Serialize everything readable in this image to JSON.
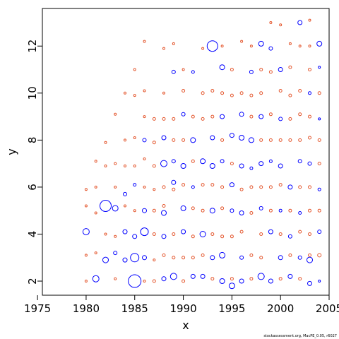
{
  "chart_data": {
    "type": "scatter",
    "title": "",
    "xlabel": "x",
    "ylabel": "y",
    "xlim": [
      1975.5,
      2005
    ],
    "ylim": [
      1.4,
      13.6
    ],
    "x_ticks": [
      1975,
      1980,
      1985,
      1990,
      1995,
      2000,
      2005
    ],
    "y_ticks": [
      2,
      4,
      6,
      8,
      10,
      12
    ],
    "grid": false,
    "legend": "none",
    "marker": "circle, size proportional to magnitude",
    "colors": {
      "positive": "#0000ff",
      "negative": "#e4572e",
      "frame": "#000000"
    },
    "footnote": "stockassessment.org, MacPE_0.05, r6027",
    "series": [
      {
        "name": "",
        "color": "#0000ff",
        "points": [
          [
            1980,
            4.1,
            0.9
          ],
          [
            1981,
            2.1,
            0.9
          ],
          [
            1982,
            5.2,
            1.6
          ],
          [
            1982,
            2.9,
            0.8
          ],
          [
            1983,
            5.1,
            0.8
          ],
          [
            1983,
            3.2,
            0.5
          ],
          [
            1984,
            5.7,
            0.5
          ],
          [
            1984,
            4.1,
            0.6
          ],
          [
            1984,
            2.9,
            0.6
          ],
          [
            1985,
            2.0,
            1.8
          ],
          [
            1985,
            3.0,
            1.2
          ],
          [
            1985,
            3.9,
            0.6
          ],
          [
            1985,
            6.1,
            0.4
          ],
          [
            1986,
            4.1,
            1.1
          ],
          [
            1986,
            5.0,
            0.6
          ],
          [
            1986,
            3.0,
            0.6
          ],
          [
            1986,
            8.0,
            0.5
          ],
          [
            1988,
            7.0,
            0.9
          ],
          [
            1988,
            8.1,
            0.6
          ],
          [
            1988,
            4.9,
            0.7
          ],
          [
            1988,
            3.9,
            0.6
          ],
          [
            1988,
            2.1,
            0.6
          ],
          [
            1989,
            6.2,
            0.6
          ],
          [
            1989,
            10.9,
            0.5
          ],
          [
            1989,
            7.1,
            0.5
          ],
          [
            1989,
            2.2,
            0.9
          ],
          [
            1990,
            6.9,
            0.7
          ],
          [
            1990,
            9.1,
            0.5
          ],
          [
            1990,
            5.1,
            0.7
          ],
          [
            1990,
            4.1,
            0.6
          ],
          [
            1991,
            8.0,
            0.7
          ],
          [
            1991,
            2.2,
            0.6
          ],
          [
            1991,
            10.9,
            0.4
          ],
          [
            1991,
            6.0,
            0.4
          ],
          [
            1992,
            7.1,
            0.7
          ],
          [
            1992,
            4.0,
            0.8
          ],
          [
            1992,
            2.2,
            0.6
          ],
          [
            1993,
            12.0,
            1.5
          ],
          [
            1993,
            8.1,
            0.6
          ],
          [
            1993,
            6.9,
            0.7
          ],
          [
            1993,
            5.0,
            0.7
          ],
          [
            1993,
            3.0,
            0.6
          ],
          [
            1994,
            11.1,
            0.7
          ],
          [
            1994,
            9.0,
            0.6
          ],
          [
            1994,
            7.1,
            0.5
          ],
          [
            1994,
            3.1,
            0.8
          ],
          [
            1994,
            2.0,
            0.7
          ],
          [
            1995,
            8.2,
            0.6
          ],
          [
            1995,
            6.1,
            0.6
          ],
          [
            1995,
            5.0,
            0.5
          ],
          [
            1995,
            1.8,
            0.8
          ],
          [
            1996,
            9.1,
            0.6
          ],
          [
            1996,
            8.1,
            0.7
          ],
          [
            1996,
            6.9,
            0.6
          ],
          [
            1996,
            4.9,
            0.6
          ],
          [
            1996,
            3.0,
            0.5
          ],
          [
            1996,
            2.0,
            0.6
          ],
          [
            1997,
            10.9,
            0.5
          ],
          [
            1997,
            8.0,
            0.7
          ],
          [
            1997,
            6.8,
            0.4
          ],
          [
            1998,
            12.1,
            0.7
          ],
          [
            1998,
            9.0,
            0.6
          ],
          [
            1998,
            7.0,
            0.6
          ],
          [
            1998,
            5.1,
            0.5
          ],
          [
            1998,
            2.2,
            0.9
          ],
          [
            1999,
            11.9,
            0.5
          ],
          [
            1999,
            7.1,
            0.4
          ],
          [
            1999,
            4.1,
            0.6
          ],
          [
            1999,
            2.0,
            0.6
          ],
          [
            2000,
            11.0,
            0.6
          ],
          [
            2000,
            8.9,
            0.5
          ],
          [
            2000,
            6.9,
            0.6
          ],
          [
            2000,
            5.0,
            0.4
          ],
          [
            2000,
            3.0,
            0.6
          ],
          [
            2001,
            6.0,
            0.6
          ],
          [
            2001,
            3.9,
            0.5
          ],
          [
            2001,
            2.2,
            0.6
          ],
          [
            2002,
            13.0,
            0.6
          ],
          [
            2002,
            7.1,
            0.5
          ],
          [
            2002,
            4.9,
            0.4
          ],
          [
            2002,
            3.0,
            0.5
          ],
          [
            2003,
            10.0,
            0.4
          ],
          [
            2003,
            7.0,
            0.5
          ],
          [
            2003,
            2.9,
            0.8
          ],
          [
            2003,
            1.9,
            0.6
          ],
          [
            2004,
            12.1,
            0.7
          ],
          [
            2004,
            11.1,
            0.3
          ],
          [
            2004,
            8.9,
            0.3
          ],
          [
            2004,
            5.9,
            0.4
          ],
          [
            2004,
            4.1,
            0.5
          ],
          [
            2004,
            2.0,
            0.3
          ]
        ]
      },
      {
        "name": "",
        "color": "#e4572e",
        "points": [
          [
            1980,
            5.9,
            0.3
          ],
          [
            1980,
            5.2,
            0.3
          ],
          [
            1980,
            3.1,
            0.3
          ],
          [
            1980,
            2.0,
            0.3
          ],
          [
            1981,
            7.1,
            0.3
          ],
          [
            1981,
            6.0,
            0.3
          ],
          [
            1981,
            4.9,
            0.3
          ],
          [
            1981,
            3.2,
            0.3
          ],
          [
            1982,
            7.9,
            0.3
          ],
          [
            1982,
            6.9,
            0.3
          ],
          [
            1982,
            4.0,
            0.3
          ],
          [
            1983,
            9.1,
            0.3
          ],
          [
            1983,
            7.0,
            0.3
          ],
          [
            1983,
            6.0,
            0.3
          ],
          [
            1983,
            3.9,
            0.3
          ],
          [
            1983,
            2.1,
            0.3
          ],
          [
            1984,
            10.0,
            0.3
          ],
          [
            1984,
            8.0,
            0.3
          ],
          [
            1984,
            6.9,
            0.3
          ],
          [
            1984,
            5.2,
            0.3
          ],
          [
            1985,
            11.0,
            0.3
          ],
          [
            1985,
            9.9,
            0.3
          ],
          [
            1985,
            8.1,
            0.3
          ],
          [
            1985,
            6.9,
            0.3
          ],
          [
            1985,
            5.0,
            0.3
          ],
          [
            1986,
            12.2,
            0.3
          ],
          [
            1986,
            10.1,
            0.3
          ],
          [
            1986,
            9.0,
            0.3
          ],
          [
            1986,
            7.2,
            0.3
          ],
          [
            1986,
            6.0,
            0.3
          ],
          [
            1986,
            2.0,
            0.3
          ],
          [
            1987,
            8.9,
            0.4
          ],
          [
            1987,
            7.9,
            0.4
          ],
          [
            1987,
            6.9,
            0.4
          ],
          [
            1987,
            5.9,
            0.3
          ],
          [
            1987,
            5.0,
            0.4
          ],
          [
            1987,
            4.0,
            0.4
          ],
          [
            1987,
            2.9,
            0.3
          ],
          [
            1987,
            2.0,
            0.4
          ],
          [
            1988,
            11.9,
            0.3
          ],
          [
            1988,
            10.0,
            0.3
          ],
          [
            1988,
            8.9,
            0.4
          ],
          [
            1988,
            6.0,
            0.4
          ],
          [
            1988,
            5.2,
            0.4
          ],
          [
            1988,
            3.1,
            0.4
          ],
          [
            1989,
            12.1,
            0.3
          ],
          [
            1989,
            8.9,
            0.4
          ],
          [
            1989,
            8.0,
            0.4
          ],
          [
            1989,
            5.9,
            0.4
          ],
          [
            1989,
            4.0,
            0.4
          ],
          [
            1989,
            3.0,
            0.4
          ],
          [
            1990,
            11.0,
            0.3
          ],
          [
            1990,
            10.1,
            0.4
          ],
          [
            1990,
            8.0,
            0.4
          ],
          [
            1990,
            6.1,
            0.4
          ],
          [
            1990,
            3.0,
            0.4
          ],
          [
            1990,
            2.0,
            0.4
          ],
          [
            1991,
            9.0,
            0.4
          ],
          [
            1991,
            7.1,
            0.4
          ],
          [
            1991,
            5.1,
            0.4
          ],
          [
            1991,
            3.9,
            0.4
          ],
          [
            1991,
            3.0,
            0.4
          ],
          [
            1992,
            11.9,
            0.3
          ],
          [
            1992,
            10.0,
            0.4
          ],
          [
            1992,
            8.9,
            0.4
          ],
          [
            1992,
            6.1,
            0.4
          ],
          [
            1992,
            5.0,
            0.4
          ],
          [
            1992,
            3.1,
            0.4
          ],
          [
            1993,
            10.1,
            0.4
          ],
          [
            1993,
            9.0,
            0.4
          ],
          [
            1993,
            6.1,
            0.4
          ],
          [
            1993,
            4.0,
            0.4
          ],
          [
            1993,
            2.1,
            0.4
          ],
          [
            1994,
            12.0,
            0.3
          ],
          [
            1994,
            10.0,
            0.4
          ],
          [
            1994,
            8.0,
            0.4
          ],
          [
            1994,
            6.0,
            0.4
          ],
          [
            1994,
            5.1,
            0.4
          ],
          [
            1994,
            3.9,
            0.4
          ],
          [
            1995,
            11.0,
            0.4
          ],
          [
            1995,
            9.9,
            0.4
          ],
          [
            1995,
            7.0,
            0.4
          ],
          [
            1995,
            3.9,
            0.4
          ],
          [
            1995,
            2.1,
            0.4
          ],
          [
            1996,
            12.2,
            0.3
          ],
          [
            1996,
            10.0,
            0.4
          ],
          [
            1996,
            5.9,
            0.4
          ],
          [
            1996,
            4.1,
            0.4
          ],
          [
            1997,
            12.0,
            0.3
          ],
          [
            1997,
            9.9,
            0.4
          ],
          [
            1997,
            9.0,
            0.4
          ],
          [
            1997,
            6.0,
            0.4
          ],
          [
            1997,
            4.9,
            0.4
          ],
          [
            1997,
            3.1,
            0.4
          ],
          [
            1997,
            2.1,
            0.4
          ],
          [
            1998,
            11.0,
            0.4
          ],
          [
            1998,
            10.0,
            0.4
          ],
          [
            1998,
            8.0,
            0.4
          ],
          [
            1998,
            6.0,
            0.4
          ],
          [
            1998,
            4.0,
            0.4
          ],
          [
            1998,
            3.0,
            0.4
          ],
          [
            1999,
            13.0,
            0.3
          ],
          [
            1999,
            10.9,
            0.4
          ],
          [
            1999,
            9.1,
            0.4
          ],
          [
            1999,
            8.0,
            0.4
          ],
          [
            1999,
            6.0,
            0.4
          ],
          [
            1999,
            5.0,
            0.4
          ],
          [
            2000,
            12.9,
            0.3
          ],
          [
            2000,
            10.1,
            0.4
          ],
          [
            2000,
            8.0,
            0.4
          ],
          [
            2000,
            6.1,
            0.4
          ],
          [
            2000,
            4.0,
            0.4
          ],
          [
            2000,
            2.1,
            0.4
          ],
          [
            2001,
            12.1,
            0.3
          ],
          [
            2001,
            11.1,
            0.4
          ],
          [
            2001,
            9.9,
            0.4
          ],
          [
            2001,
            8.9,
            0.4
          ],
          [
            2001,
            8.0,
            0.4
          ],
          [
            2001,
            5.0,
            0.4
          ],
          [
            2001,
            3.1,
            0.4
          ],
          [
            2002,
            12.0,
            0.3
          ],
          [
            2002,
            10.1,
            0.4
          ],
          [
            2002,
            9.1,
            0.4
          ],
          [
            2002,
            8.0,
            0.4
          ],
          [
            2002,
            6.0,
            0.4
          ],
          [
            2002,
            4.1,
            0.4
          ],
          [
            2002,
            2.1,
            0.4
          ],
          [
            2003,
            13.1,
            0.3
          ],
          [
            2003,
            12.0,
            0.3
          ],
          [
            2003,
            11.0,
            0.4
          ],
          [
            2003,
            9.0,
            0.4
          ],
          [
            2003,
            8.1,
            0.4
          ],
          [
            2003,
            6.0,
            0.4
          ],
          [
            2003,
            5.0,
            0.4
          ],
          [
            2003,
            4.0,
            0.4
          ],
          [
            2003,
            3.1,
            0.4
          ],
          [
            2004,
            10.0,
            0.4
          ],
          [
            2004,
            8.0,
            0.4
          ],
          [
            2004,
            7.0,
            0.4
          ],
          [
            2004,
            5.0,
            0.4
          ],
          [
            2004,
            3.1,
            0.5
          ]
        ]
      }
    ]
  }
}
